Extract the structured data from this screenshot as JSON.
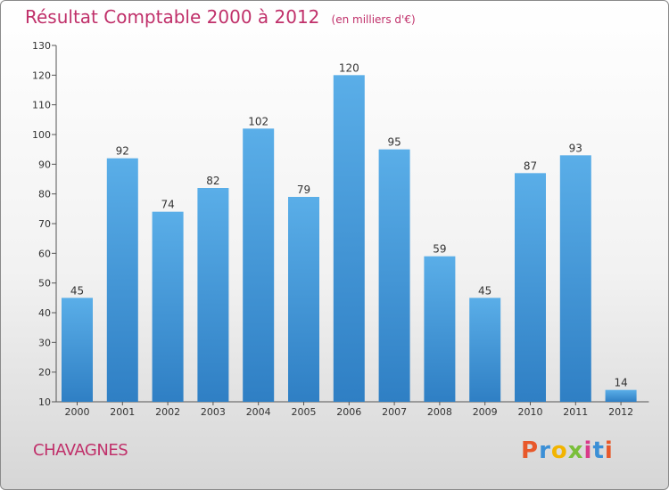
{
  "header": {
    "title": "Résultat Comptable 2000 à 2012",
    "subtitle": "(en milliers d'€)"
  },
  "footer": {
    "commune": "CHAVAGNES",
    "logo_text": "Proxiti"
  },
  "colors": {
    "bar_light": "#5aaee8",
    "bar_dark": "#2f7fc4",
    "title": "#c0306a",
    "logo_letters": [
      "#e8582a",
      "#3b8fd6",
      "#f2b400",
      "#7abf3a",
      "#d93a8a",
      "#3b8fd6",
      "#e8582a"
    ]
  },
  "chart_data": {
    "type": "bar",
    "title": "Résultat Comptable 2000 à 2012",
    "subtitle": "(en milliers d'€)",
    "categories": [
      "2000",
      "2001",
      "2002",
      "2003",
      "2004",
      "2005",
      "2006",
      "2007",
      "2008",
      "2009",
      "2010",
      "2011",
      "2012"
    ],
    "values": [
      45,
      92,
      74,
      82,
      102,
      79,
      120,
      95,
      59,
      45,
      87,
      93,
      14
    ],
    "ylim": [
      10,
      130
    ],
    "yticks": [
      10,
      20,
      30,
      40,
      50,
      60,
      70,
      80,
      90,
      100,
      110,
      120,
      130
    ],
    "xlabel": "",
    "ylabel": "",
    "grid": false
  }
}
